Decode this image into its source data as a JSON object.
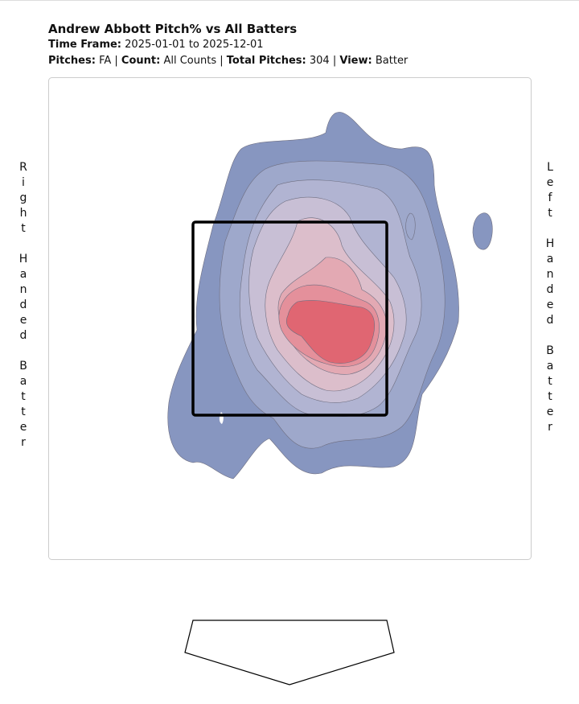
{
  "header": {
    "title": "Andrew Abbott Pitch% vs All Batters",
    "time_frame": {
      "label": "Time Frame:",
      "value": "2025-01-01 to 2025-12-01"
    },
    "filters": [
      {
        "label": "Pitches:",
        "value": "FA"
      },
      {
        "label": "Count:",
        "value": "All Counts"
      },
      {
        "label": "Total Pitches:",
        "value": "304"
      },
      {
        "label": "View:",
        "value": "Batter"
      }
    ],
    "separator": "|"
  },
  "side_labels": {
    "left": "Right Handed Batter",
    "right": "Left Handed Batter"
  }
}
